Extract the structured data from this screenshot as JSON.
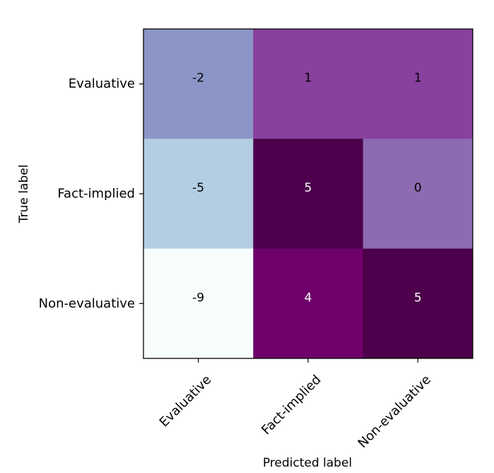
{
  "chart_data": {
    "type": "heatmap",
    "xlabel": "Predicted label",
    "ylabel": "True label",
    "x_categories": [
      "Evaluative",
      "Fact-implied",
      "Non-evaluative"
    ],
    "y_categories": [
      "Evaluative",
      "Fact-implied",
      "Non-evaluative"
    ],
    "values": [
      [
        -2,
        1,
        1
      ],
      [
        -5,
        5,
        0
      ],
      [
        -9,
        4,
        5
      ]
    ],
    "cell_colors": [
      [
        "#8c96c6",
        "#88419d",
        "#88419d"
      ],
      [
        "#b3cde3",
        "#4d004b",
        "#8c6bb1"
      ],
      [
        "#f7fcfd",
        "#6e016b",
        "#4d004b"
      ]
    ],
    "label_colors": [
      [
        "#000000",
        "#000000",
        "#000000"
      ],
      [
        "#000000",
        "#ffffff",
        "#000000"
      ],
      [
        "#000000",
        "#ffffff",
        "#ffffff"
      ]
    ],
    "colormap": "BuPu",
    "colorbar": false,
    "grid": false
  }
}
